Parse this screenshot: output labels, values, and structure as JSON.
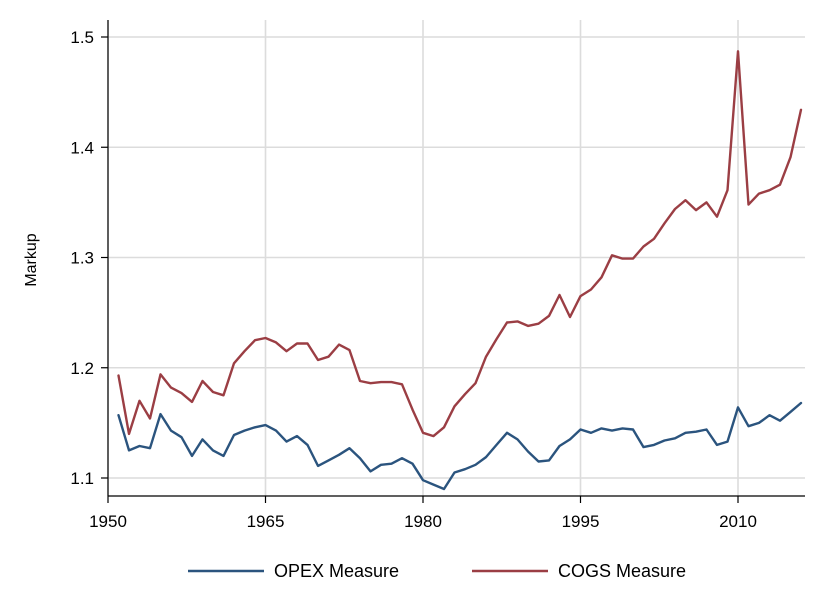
{
  "chart_data": {
    "type": "line",
    "title": "",
    "xlabel": "",
    "ylabel": "Markup",
    "xlim": [
      1950,
      2016
    ],
    "ylim": [
      1.08,
      1.515
    ],
    "xticks": [
      1950,
      1965,
      1980,
      1995,
      2010
    ],
    "yticks": [
      1.1,
      1.2,
      1.3,
      1.4,
      1.5
    ],
    "grid": true,
    "legend_position": "bottom",
    "x": [
      1951,
      1952,
      1953,
      1954,
      1955,
      1956,
      1957,
      1958,
      1959,
      1960,
      1961,
      1962,
      1963,
      1964,
      1965,
      1966,
      1967,
      1968,
      1969,
      1970,
      1971,
      1972,
      1973,
      1974,
      1975,
      1976,
      1977,
      1978,
      1979,
      1980,
      1981,
      1982,
      1983,
      1984,
      1985,
      1986,
      1987,
      1988,
      1989,
      1990,
      1991,
      1992,
      1993,
      1994,
      1995,
      1996,
      1997,
      1998,
      1999,
      2000,
      2001,
      2002,
      2003,
      2004,
      2005,
      2006,
      2007,
      2008,
      2009,
      2010,
      2011,
      2012,
      2013,
      2014,
      2015,
      2016
    ],
    "series": [
      {
        "name": "OPEX Measure",
        "color": "#2b547e",
        "values": [
          1.157,
          1.125,
          1.129,
          1.127,
          1.158,
          1.143,
          1.137,
          1.12,
          1.135,
          1.125,
          1.12,
          1.139,
          1.143,
          1.146,
          1.148,
          1.143,
          1.133,
          1.138,
          1.13,
          1.111,
          1.116,
          1.121,
          1.127,
          1.118,
          1.106,
          1.112,
          1.113,
          1.118,
          1.113,
          1.098,
          1.094,
          1.09,
          1.105,
          1.108,
          1.112,
          1.119,
          1.13,
          1.141,
          1.135,
          1.124,
          1.115,
          1.116,
          1.129,
          1.135,
          1.144,
          1.141,
          1.145,
          1.143,
          1.145,
          1.144,
          1.128,
          1.13,
          1.134,
          1.136,
          1.141,
          1.142,
          1.144,
          1.13,
          1.133,
          1.164,
          1.147,
          1.15,
          1.157,
          1.152,
          1.16,
          1.168
        ]
      },
      {
        "name": "COGS Measure",
        "color": "#9b3e44",
        "values": [
          1.193,
          1.14,
          1.17,
          1.154,
          1.194,
          1.182,
          1.177,
          1.169,
          1.188,
          1.178,
          1.175,
          1.204,
          1.215,
          1.225,
          1.227,
          1.223,
          1.215,
          1.222,
          1.222,
          1.207,
          1.21,
          1.221,
          1.216,
          1.188,
          1.186,
          1.187,
          1.187,
          1.185,
          1.162,
          1.141,
          1.138,
          1.146,
          1.165,
          1.176,
          1.186,
          1.21,
          1.226,
          1.241,
          1.242,
          1.238,
          1.24,
          1.247,
          1.266,
          1.246,
          1.265,
          1.271,
          1.282,
          1.302,
          1.299,
          1.299,
          1.31,
          1.317,
          1.331,
          1.344,
          1.352,
          1.343,
          1.35,
          1.337,
          1.361,
          1.487,
          1.348,
          1.358,
          1.361,
          1.366,
          1.391,
          1.434
        ]
      }
    ]
  }
}
